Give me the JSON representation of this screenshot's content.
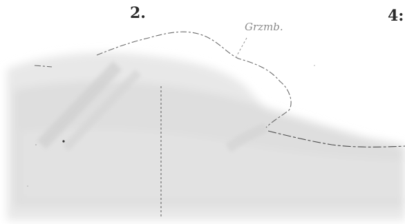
{
  "figure": {
    "labels": {
      "left_number": "2.",
      "right_number": "4:",
      "annotation": "Grzmb."
    }
  }
}
